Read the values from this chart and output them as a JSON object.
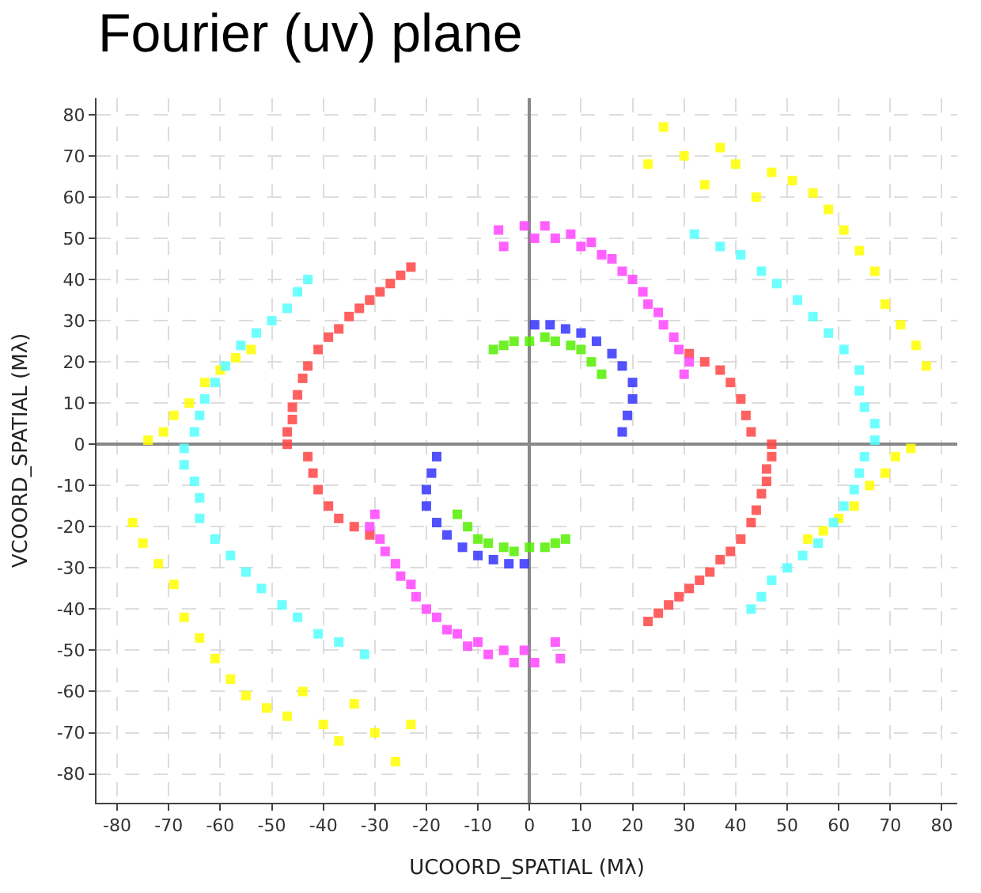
{
  "chart_data": {
    "type": "scatter",
    "title": "Fourier (uv) plane",
    "xlabel": "UCOORD_SPATIAL (Mλ)",
    "ylabel": "VCOORD_SPATIAL (Mλ)",
    "xlim": [
      -84,
      83
    ],
    "ylim": [
      -87,
      84
    ],
    "xticks": [
      -80,
      -70,
      -60,
      -50,
      -40,
      -30,
      -20,
      -10,
      0,
      10,
      20,
      30,
      40,
      50,
      60,
      70,
      80
    ],
    "yticks": [
      -80,
      -70,
      -60,
      -50,
      -40,
      -30,
      -20,
      -10,
      0,
      10,
      20,
      30,
      40,
      50,
      60,
      70,
      80
    ],
    "grid": true,
    "marker": "square",
    "series": [
      {
        "color": "#ffff00",
        "x": [
          -74,
          -71,
          -69,
          -66,
          -63,
          -60,
          -57,
          -54,
          -77,
          -75,
          -72,
          -69,
          -67,
          -64,
          -61,
          -58,
          -55,
          -51,
          -47,
          -44,
          -40,
          -37,
          -34,
          -30,
          -26,
          -23,
          74,
          71,
          69,
          66,
          63,
          60,
          57,
          54,
          77,
          75,
          72,
          69,
          67,
          64,
          61,
          58,
          55,
          51,
          47,
          44,
          40,
          37,
          34,
          30,
          26,
          23
        ],
        "values": [
          1,
          3,
          7,
          10,
          15,
          18,
          21,
          23,
          -19,
          -24,
          -29,
          -34,
          -42,
          -47,
          -52,
          -57,
          -61,
          -64,
          -66,
          -60,
          -68,
          -72,
          -63,
          -70,
          -77,
          -68,
          -1,
          -3,
          -7,
          -10,
          -15,
          -18,
          -21,
          -23,
          19,
          24,
          29,
          34,
          42,
          47,
          52,
          57,
          61,
          64,
          66,
          60,
          68,
          72,
          63,
          70,
          77,
          68
        ]
      },
      {
        "color": "#55ffff",
        "x": [
          -67,
          -65,
          -64,
          -63,
          -61,
          -59,
          -56,
          -53,
          -50,
          -47,
          -45,
          -43,
          -67,
          -65,
          -64,
          -64,
          -61,
          -58,
          -55,
          -52,
          -48,
          -45,
          -41,
          -37,
          -32,
          67,
          65,
          64,
          63,
          61,
          59,
          56,
          53,
          50,
          47,
          45,
          43,
          67,
          65,
          64,
          64,
          61,
          58,
          55,
          52,
          48,
          45,
          41,
          37,
          32
        ],
        "values": [
          -1,
          3,
          7,
          11,
          15,
          19,
          24,
          27,
          30,
          33,
          37,
          40,
          -5,
          -9,
          -13,
          -18,
          -23,
          -27,
          -31,
          -35,
          -39,
          -42,
          -46,
          -48,
          -51,
          1,
          -3,
          -7,
          -11,
          -15,
          -19,
          -24,
          -27,
          -30,
          -33,
          -37,
          -40,
          5,
          9,
          13,
          18,
          23,
          27,
          31,
          35,
          39,
          42,
          46,
          48,
          51
        ]
      },
      {
        "color": "#ff4444",
        "x": [
          -47,
          -47,
          -46,
          -46,
          -45,
          -44,
          -43,
          -41,
          -39,
          -37,
          -35,
          -33,
          -31,
          -29,
          -27,
          -25,
          -23,
          -43,
          -42,
          -41,
          -39,
          -37,
          -34,
          -31,
          47,
          47,
          46,
          46,
          45,
          44,
          43,
          41,
          39,
          37,
          35,
          33,
          31,
          29,
          27,
          25,
          23,
          43,
          42,
          41,
          39,
          37,
          34,
          31
        ],
        "values": [
          0,
          3,
          6,
          9,
          12,
          16,
          19,
          23,
          26,
          28,
          31,
          33,
          35,
          37,
          39,
          41,
          43,
          -3,
          -7,
          -11,
          -15,
          -18,
          -20,
          -22,
          0,
          -3,
          -6,
          -9,
          -12,
          -16,
          -19,
          -23,
          -26,
          -28,
          -31,
          -33,
          -35,
          -37,
          -39,
          -41,
          -43,
          3,
          7,
          11,
          15,
          18,
          20,
          22
        ]
      },
      {
        "color": "#ff44ff",
        "x": [
          -6,
          -5,
          -1,
          1,
          3,
          5,
          8,
          10,
          12,
          14,
          16,
          18,
          20,
          22,
          23,
          25,
          26,
          28,
          29,
          31,
          30,
          6,
          5,
          1,
          -1,
          -3,
          -5,
          -8,
          -10,
          -12,
          -14,
          -16,
          -18,
          -20,
          -22,
          -23,
          -25,
          -26,
          -28,
          -29,
          -31,
          -30
        ],
        "values": [
          52,
          48,
          53,
          50,
          53,
          50,
          51,
          48,
          49,
          46,
          45,
          42,
          40,
          37,
          34,
          32,
          29,
          26,
          23,
          20,
          17,
          -52,
          -48,
          -53,
          -50,
          -53,
          -50,
          -51,
          -48,
          -49,
          -46,
          -45,
          -42,
          -40,
          -37,
          -34,
          -32,
          -29,
          -26,
          -23,
          -20,
          -17
        ]
      },
      {
        "color": "#3333ff",
        "x": [
          1,
          4,
          7,
          10,
          13,
          16,
          18,
          20,
          20,
          19,
          18,
          -1,
          -4,
          -7,
          -10,
          -13,
          -16,
          -18,
          -20,
          -20,
          -19,
          -18
        ],
        "values": [
          29,
          29,
          28,
          27,
          25,
          22,
          19,
          15,
          11,
          7,
          3,
          -29,
          -29,
          -28,
          -27,
          -25,
          -22,
          -19,
          -15,
          -11,
          -7,
          -3
        ]
      },
      {
        "color": "#55ee00",
        "x": [
          -7,
          -5,
          -3,
          0,
          3,
          5,
          8,
          10,
          12,
          14,
          7,
          5,
          3,
          0,
          -3,
          -5,
          -8,
          -10,
          -12,
          -14
        ],
        "values": [
          23,
          24,
          25,
          25,
          26,
          25,
          24,
          23,
          20,
          17,
          -23,
          -24,
          -25,
          -25,
          -26,
          -25,
          -24,
          -23,
          -20,
          -17
        ]
      }
    ]
  }
}
